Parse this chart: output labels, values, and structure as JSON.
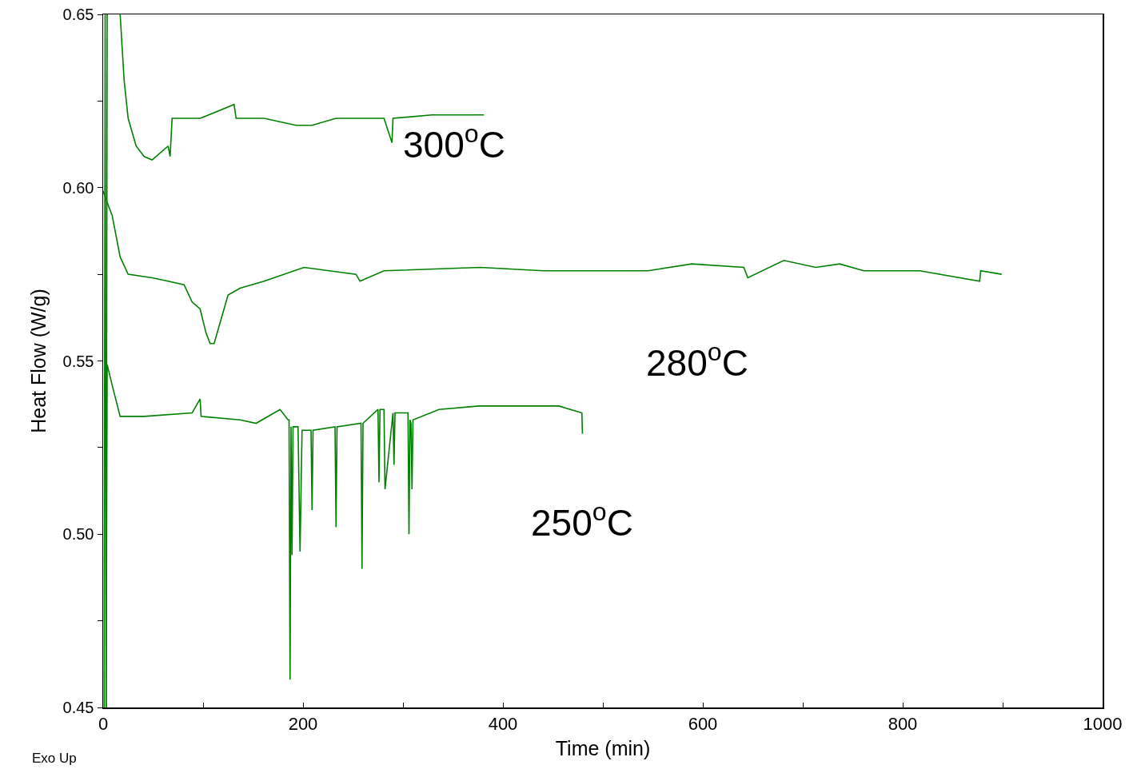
{
  "chart_data": {
    "type": "line",
    "xlabel": "Time (min)",
    "ylabel": "Heat Flow (W/g)",
    "xlim": [
      0,
      1000
    ],
    "xticks": [
      0,
      {
        "value": 100,
        "label": null
      },
      200,
      {
        "value": 300,
        "label": null
      },
      400,
      {
        "value": 500,
        "label": null
      },
      600,
      {
        "value": 700,
        "label": null
      },
      800,
      {
        "value": 900,
        "label": null
      },
      1000
    ],
    "ylim": [
      0.45,
      0.65
    ],
    "yticks": [
      {
        "value": 0.45,
        "label": "0.45"
      },
      {
        "value": 0.475,
        "label": null
      },
      {
        "value": 0.5,
        "label": "0.50"
      },
      {
        "value": 0.525,
        "label": null
      },
      {
        "value": 0.55,
        "label": "0.55"
      },
      {
        "value": 0.575,
        "label": null
      },
      {
        "value": 0.6,
        "label": "0.60"
      },
      {
        "value": 0.625,
        "label": null
      },
      {
        "value": 0.65,
        "label": "0.65"
      }
    ],
    "grid": false,
    "marker": "none",
    "line_style": "solid",
    "series": [
      {
        "name": "300$^{o}$C",
        "color": "#008000",
        "x": [
          3,
          4,
          null,
          17,
          21,
          25,
          33,
          41,
          49,
          57,
          65,
          67,
          69,
          97,
          131,
          133,
          161,
          193,
          209,
          233,
          281,
          289,
          290,
          329,
          381
        ],
        "values": [
          0.45,
          0.65,
          null,
          0.65,
          0.631,
          0.62,
          0.612,
          0.609,
          0.608,
          0.61,
          0.612,
          0.609,
          0.62,
          0.62,
          0.624,
          0.62,
          0.62,
          0.618,
          0.618,
          0.62,
          0.62,
          0.613,
          0.62,
          0.621,
          0.621
        ]
      },
      {
        "name": "280$^{o}$C",
        "color": "#008000",
        "x": [
          0,
          5,
          9,
          17,
          25,
          49,
          65,
          81,
          89,
          97,
          103,
          107,
          111,
          117,
          125,
          137,
          161,
          201,
          253,
          257,
          281,
          377,
          441,
          521,
          545,
          589,
          641,
          645,
          681,
          713,
          737,
          761,
          817,
          877,
          878,
          899
        ],
        "values": [
          0.599,
          0.595,
          0.592,
          0.58,
          0.575,
          0.574,
          0.573,
          0.572,
          0.567,
          0.565,
          0.558,
          0.555,
          0.555,
          0.561,
          0.569,
          0.571,
          0.573,
          0.577,
          0.575,
          0.573,
          0.576,
          0.577,
          0.576,
          0.576,
          0.576,
          0.578,
          0.577,
          0.574,
          0.579,
          0.577,
          0.578,
          0.576,
          0.576,
          0.573,
          0.576,
          0.575
        ]
      },
      {
        "name": "250$^{o}$C",
        "color": "#008000",
        "x": [
          1,
          2,
          3,
          4,
          9,
          17,
          41,
          89,
          97,
          98,
          137,
          153,
          177,
          185,
          186,
          187,
          188,
          189,
          190,
          195,
          197,
          199,
          208,
          209,
          210,
          232,
          233,
          234,
          258,
          259,
          260,
          275,
          276,
          277,
          281,
          282,
          290,
          291,
          292,
          305,
          306,
          307,
          308,
          309,
          310,
          336,
          376,
          416,
          456,
          479,
          479.5
        ],
        "values": [
          0.45,
          0.65,
          0.45,
          0.549,
          0.543,
          0.534,
          0.534,
          0.535,
          0.539,
          0.534,
          0.533,
          0.532,
          0.536,
          0.533,
          0.533,
          0.458,
          0.531,
          0.494,
          0.531,
          0.531,
          0.495,
          0.53,
          0.53,
          0.507,
          0.53,
          0.531,
          0.502,
          0.531,
          0.532,
          0.49,
          0.532,
          0.536,
          0.515,
          0.536,
          0.536,
          0.513,
          0.535,
          0.52,
          0.535,
          0.535,
          0.5,
          0.533,
          0.532,
          0.513,
          0.533,
          0.536,
          0.537,
          0.537,
          0.537,
          0.535,
          0.529
        ]
      }
    ],
    "annotations": [
      "Exo Up"
    ]
  }
}
